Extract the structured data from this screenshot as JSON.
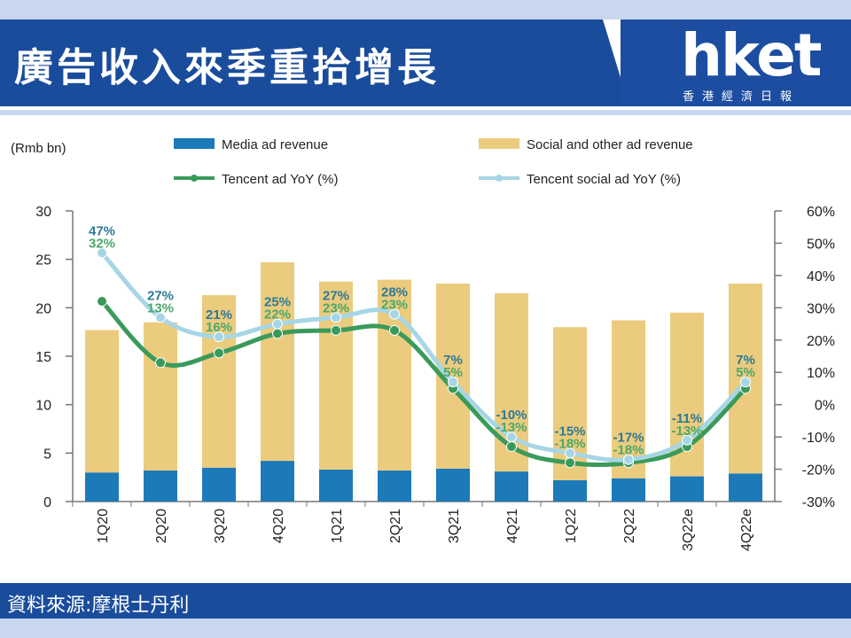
{
  "header": {
    "title": "廣告收入來季重拾增長",
    "logo_word": "hket",
    "logo_sub": "香港經濟日報"
  },
  "footer": {
    "source": "資料來源:摩根士丹利"
  },
  "colors": {
    "media": "#1c7ab8",
    "social": "#ebcb7e",
    "tencent_line": "#3a9a5a",
    "social_line": "#a6d6e6",
    "header_blue": "#1a4c9c"
  },
  "chart_data": {
    "type": "bar",
    "unit_label": "(Rmb bn)",
    "categories": [
      "1Q20",
      "2Q20",
      "3Q20",
      "4Q20",
      "1Q21",
      "2Q21",
      "3Q21",
      "4Q21",
      "1Q22",
      "2Q22",
      "3Q22e",
      "4Q22e"
    ],
    "series": [
      {
        "name": "Media ad revenue",
        "kind": "bar",
        "values": [
          3.0,
          3.2,
          3.5,
          4.2,
          3.3,
          3.2,
          3.4,
          3.1,
          2.2,
          2.4,
          2.6,
          2.9
        ]
      },
      {
        "name": "Social and other ad revenue",
        "kind": "bar",
        "values": [
          14.7,
          15.3,
          17.8,
          20.5,
          19.4,
          19.7,
          19.1,
          18.4,
          15.8,
          16.3,
          16.9,
          19.6
        ]
      },
      {
        "name": "Tencent ad YoY (%)",
        "kind": "line",
        "axis": "right",
        "values": [
          32,
          13,
          16,
          22,
          23,
          23,
          5,
          -13,
          -18,
          -18,
          -13,
          5
        ]
      },
      {
        "name": "Tencent social ad YoY (%)",
        "kind": "line",
        "axis": "right",
        "values": [
          47,
          27,
          21,
          25,
          27,
          28,
          7,
          -10,
          -15,
          -17,
          -11,
          7
        ]
      }
    ],
    "labels_tencent": [
      "32%",
      "13%",
      "16%",
      "22%",
      "23%",
      "23%",
      "5%",
      "-13%",
      "-18%",
      "-18%",
      "-13%",
      "5%"
    ],
    "labels_social": [
      "47%",
      "27%",
      "21%",
      "25%",
      "27%",
      "28%",
      "7%",
      "-10%",
      "-15%",
      "-17%",
      "-11%",
      "7%"
    ],
    "ylim": [
      0,
      30
    ],
    "yticks": [
      "0",
      "5",
      "10",
      "15",
      "20",
      "25",
      "30"
    ],
    "y2lim": [
      -30,
      60
    ],
    "y2ticks": [
      "-30%",
      "-20%",
      "-10%",
      "0%",
      "10%",
      "20%",
      "30%",
      "40%",
      "50%",
      "60%"
    ],
    "legend": "top"
  }
}
